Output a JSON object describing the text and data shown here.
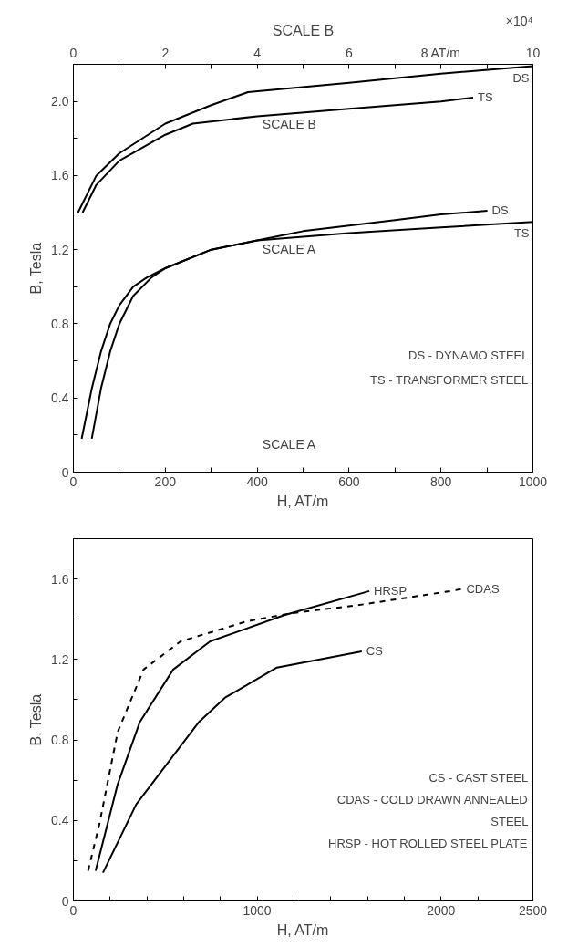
{
  "chart_data": [
    {
      "type": "line",
      "xlabel": "H, AT/m",
      "ylabel": "B, Tesla",
      "x2label": "SCALE B",
      "xlim": [
        0,
        1000
      ],
      "ylim": [
        0,
        2.2
      ],
      "x2lim": [
        0,
        10
      ],
      "xticks": [
        0,
        {
          "value": 100,
          "label": null
        },
        200,
        {
          "value": 300,
          "label": null
        },
        400,
        {
          "value": 500,
          "label": null
        },
        600,
        {
          "value": 700,
          "label": null
        },
        800,
        {
          "value": 900,
          "label": null
        },
        1000
      ],
      "yticks": [
        0,
        {
          "value": 0.2,
          "label": null
        },
        0.4,
        {
          "value": 0.6,
          "label": null
        },
        0.8,
        {
          "value": 1.0,
          "label": null
        },
        1.2,
        {
          "value": 1.4,
          "label": null
        },
        1.6,
        {
          "value": 1.8,
          "label": null
        },
        {
          "value": 2.0,
          "label": "2.0"
        }
      ],
      "x2ticks": [
        0,
        {
          "value": 1,
          "label": null
        },
        2,
        {
          "value": 3,
          "label": null
        },
        4,
        {
          "value": 5,
          "label": null
        },
        6,
        {
          "value": 7,
          "label": null
        },
        {
          "value": 8,
          "label": "8 AT/m"
        },
        {
          "value": 9,
          "label": null
        },
        10
      ],
      "series": [
        {
          "name": "DS",
          "color": "#000000",
          "x": [
            18,
            40,
            60,
            80,
            100,
            130,
            160,
            200,
            300,
            400,
            500,
            600,
            700,
            800,
            901
          ],
          "values": [
            0.18,
            0.45,
            0.65,
            0.8,
            0.9,
            1.0,
            1.05,
            1.1,
            1.2,
            1.25,
            1.3,
            1.33,
            1.36,
            1.39,
            1.41
          ]
        },
        {
          "name": "TS",
          "color": "#000000",
          "x": [
            40,
            60,
            80,
            100,
            130,
            170,
            200,
            300,
            400,
            500,
            600,
            800,
            1000
          ],
          "values": [
            0.18,
            0.45,
            0.65,
            0.8,
            0.95,
            1.05,
            1.1,
            1.2,
            1.25,
            1.27,
            1.29,
            1.32,
            1.35
          ]
        },
        {
          "name": "DS",
          "color": "#000000",
          "axis": "x2",
          "x": [
            0.1,
            0.5,
            1,
            2,
            3,
            3.8,
            6,
            8,
            10
          ],
          "values": [
            1.4,
            1.6,
            1.72,
            1.88,
            1.98,
            2.05,
            2.1,
            2.15,
            2.19
          ]
        },
        {
          "name": "TS",
          "color": "#000000",
          "axis": "x2",
          "x": [
            0.2,
            0.5,
            1,
            2,
            2.6,
            4,
            6,
            8,
            8.7
          ],
          "values": [
            1.4,
            1.55,
            1.68,
            1.82,
            1.88,
            1.92,
            1.96,
            2.0,
            2.02
          ]
        }
      ],
      "annotations": [
        "×10⁴",
        "SCALE B",
        "SCALE A",
        "SCALE A",
        "DS - DYNAMO STEEL",
        "TS - TRANSFORMER STEEL"
      ],
      "grid": false,
      "line_style": "solid",
      "marker": "none"
    },
    {
      "type": "line",
      "xlabel": "H, AT/m",
      "ylabel": "B, Tesla",
      "xlim": [
        0,
        2500
      ],
      "ylim": [
        0,
        1.8
      ],
      "xticks": [
        0,
        {
          "value": 200,
          "label": null
        },
        {
          "value": 400,
          "label": null
        },
        {
          "value": 600,
          "label": null
        },
        {
          "value": 800,
          "label": null
        },
        1000,
        {
          "value": 1200,
          "label": null
        },
        {
          "value": 1400,
          "label": null
        },
        {
          "value": 1600,
          "label": null
        },
        {
          "value": 1800,
          "label": null
        },
        2000,
        {
          "value": 2200,
          "label": null
        },
        2500
      ],
      "yticks": [
        0,
        {
          "value": 0.2,
          "label": null
        },
        0.4,
        {
          "value": 0.6,
          "label": null
        },
        0.8,
        {
          "value": 1.0,
          "label": null
        },
        1.2,
        {
          "value": 1.4,
          "label": null
        },
        1.6
      ],
      "series": [
        {
          "name": "HRSP",
          "color": "#000000",
          "line_style": "solid",
          "x": [
            121,
            241,
            362,
            543,
            744,
            1147,
            1610
          ],
          "values": [
            0.15,
            0.58,
            0.89,
            1.15,
            1.29,
            1.42,
            1.54
          ]
        },
        {
          "name": "CDAS",
          "color": "#000000",
          "line_style": "dashed",
          "x": [
            80,
            141,
            241,
            382,
            583,
            946,
            1187,
            1549,
            2052,
            2113
          ],
          "values": [
            0.15,
            0.38,
            0.84,
            1.15,
            1.29,
            1.39,
            1.43,
            1.47,
            1.54,
            1.55
          ]
        },
        {
          "name": "CS",
          "color": "#000000",
          "line_style": "solid",
          "x": [
            161,
            342,
            684,
            825,
            1107,
            1569
          ],
          "values": [
            0.14,
            0.48,
            0.89,
            1.01,
            1.16,
            1.24
          ]
        }
      ],
      "annotations": [
        "CS - CAST STEEL",
        "CDAS - COLD DRAWN ANNEALED\nSTEEL",
        "HRSP - HOT ROLLED STEEL PLATE"
      ],
      "grid": false,
      "marker": "none"
    }
  ]
}
